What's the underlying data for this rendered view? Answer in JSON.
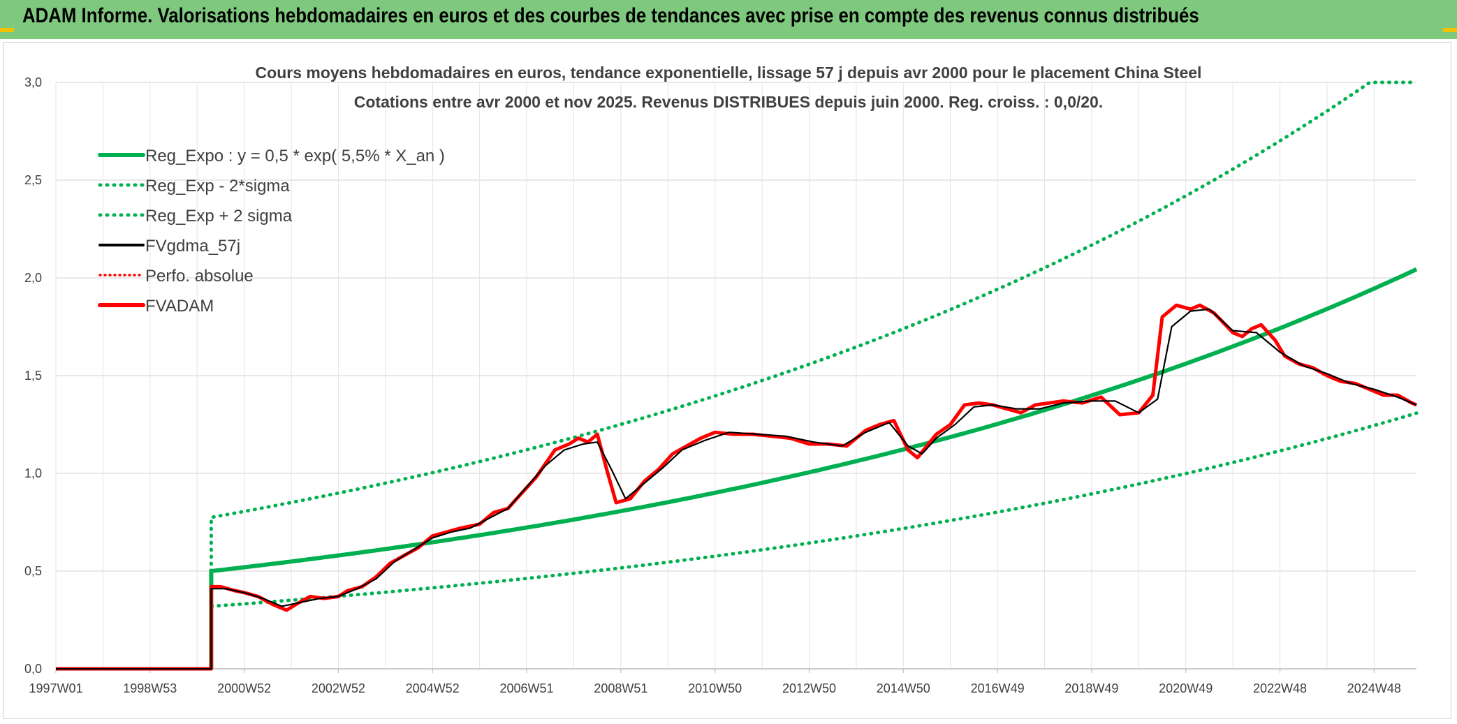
{
  "header": {
    "title": "ADAM Informe. Valorisations hebdomadaires en euros et des courbes de tendances avec prise en compte des revenus connus distribués"
  },
  "colors": {
    "header_bg": "#7fc97f",
    "green": "#00b050",
    "black": "#000000",
    "red": "#ff0000",
    "accent": "#f2c200"
  },
  "chart_data": {
    "type": "line",
    "title_line1": "Cours moyens hebdomadaires en euros, tendance exponentielle, lissage 57 j depuis avr 2000 pour le placement China Steel",
    "title_line2": "Cotations entre avr 2000 et nov 2025. Revenus DISTRIBUES depuis juin 2000. Reg. croiss. : 0,0/20.",
    "xlim": [
      1997.0,
      2025.9
    ],
    "ylim": [
      0,
      3.0
    ],
    "y_ticks": [
      {
        "v": 0.0,
        "label": "0,0"
      },
      {
        "v": 0.5,
        "label": "0,5"
      },
      {
        "v": 1.0,
        "label": "1,0"
      },
      {
        "v": 1.5,
        "label": "1,5"
      },
      {
        "v": 2.0,
        "label": "2,0"
      },
      {
        "v": 2.5,
        "label": "2,5"
      },
      {
        "v": 3.0,
        "label": "3,0"
      }
    ],
    "x_ticks": [
      {
        "v": 1997.0,
        "label": "1997W01"
      },
      {
        "v": 1999.0,
        "label": "1998W53"
      },
      {
        "v": 2001.0,
        "label": "2000W52"
      },
      {
        "v": 2003.0,
        "label": "2002W52"
      },
      {
        "v": 2005.0,
        "label": "2004W52"
      },
      {
        "v": 2007.0,
        "label": "2006W51"
      },
      {
        "v": 2009.0,
        "label": "2008W51"
      },
      {
        "v": 2011.0,
        "label": "2010W50"
      },
      {
        "v": 2013.0,
        "label": "2012W50"
      },
      {
        "v": 2015.0,
        "label": "2014W50"
      },
      {
        "v": 2017.0,
        "label": "2016W49"
      },
      {
        "v": 2019.0,
        "label": "2018W49"
      },
      {
        "v": 2021.0,
        "label": "2020W49"
      },
      {
        "v": 2023.0,
        "label": "2022W48"
      },
      {
        "v": 2025.0,
        "label": "2024W48"
      }
    ],
    "regression": {
      "start": 2000.3,
      "a": 0.5,
      "rate": 0.055,
      "upper_factor": 1.55,
      "lower_factor": 0.64
    },
    "series": [
      {
        "name": "FVADAM",
        "x": [
          1997.0,
          2000.3,
          2000.3,
          2000.5,
          2000.8,
          2001.0,
          2001.3,
          2001.6,
          2001.9,
          2002.1,
          2002.4,
          2002.7,
          2003.0,
          2003.2,
          2003.5,
          2003.8,
          2004.1,
          2004.4,
          2004.7,
          2005.0,
          2005.3,
          2005.6,
          2006.0,
          2006.3,
          2006.6,
          2006.9,
          2007.2,
          2007.4,
          2007.6,
          2007.9,
          2008.1,
          2008.3,
          2008.5,
          2008.7,
          2008.9,
          2009.2,
          2009.5,
          2009.8,
          2010.1,
          2010.4,
          2010.7,
          2011.0,
          2011.4,
          2011.8,
          2012.2,
          2012.6,
          2013.0,
          2013.4,
          2013.8,
          2014.2,
          2014.5,
          2014.8,
          2015.1,
          2015.3,
          2015.5,
          2015.7,
          2016.0,
          2016.3,
          2016.6,
          2016.9,
          2017.2,
          2017.5,
          2017.8,
          2018.1,
          2018.4,
          2018.8,
          2019.2,
          2019.6,
          2020.0,
          2020.3,
          2020.5,
          2020.8,
          2021.1,
          2021.3,
          2021.6,
          2022.0,
          2022.2,
          2022.4,
          2022.6,
          2022.9,
          2023.1,
          2023.4,
          2023.7,
          2024.0,
          2024.3,
          2024.6,
          2024.9,
          2025.2,
          2025.5,
          2025.8,
          2025.9
        ],
        "y": [
          0.0,
          0.0,
          0.42,
          0.42,
          0.4,
          0.39,
          0.37,
          0.33,
          0.3,
          0.33,
          0.37,
          0.36,
          0.37,
          0.4,
          0.42,
          0.47,
          0.54,
          0.58,
          0.62,
          0.68,
          0.7,
          0.72,
          0.74,
          0.8,
          0.82,
          0.9,
          0.98,
          1.05,
          1.12,
          1.15,
          1.18,
          1.16,
          1.2,
          1.02,
          0.85,
          0.87,
          0.96,
          1.02,
          1.1,
          1.14,
          1.18,
          1.21,
          1.2,
          1.2,
          1.19,
          1.18,
          1.15,
          1.15,
          1.14,
          1.22,
          1.25,
          1.27,
          1.12,
          1.08,
          1.14,
          1.2,
          1.25,
          1.35,
          1.36,
          1.35,
          1.33,
          1.31,
          1.35,
          1.36,
          1.37,
          1.36,
          1.39,
          1.3,
          1.31,
          1.4,
          1.8,
          1.86,
          1.84,
          1.86,
          1.82,
          1.72,
          1.7,
          1.74,
          1.76,
          1.68,
          1.6,
          1.56,
          1.54,
          1.5,
          1.47,
          1.46,
          1.43,
          1.4,
          1.4,
          1.36,
          1.35
        ]
      },
      {
        "name": "FVgdma_57j",
        "x": [
          1997.0,
          2000.3,
          2000.3,
          2000.6,
          2001.0,
          2001.4,
          2001.8,
          2002.2,
          2002.6,
          2003.0,
          2003.4,
          2003.8,
          2004.2,
          2004.6,
          2005.0,
          2005.4,
          2005.8,
          2006.2,
          2006.6,
          2007.0,
          2007.4,
          2007.8,
          2008.2,
          2008.5,
          2008.8,
          2009.1,
          2009.5,
          2009.9,
          2010.3,
          2010.8,
          2011.3,
          2011.9,
          2012.5,
          2013.1,
          2013.7,
          2014.2,
          2014.7,
          2015.1,
          2015.4,
          2015.7,
          2016.1,
          2016.5,
          2016.9,
          2017.4,
          2017.9,
          2018.4,
          2019.0,
          2019.5,
          2020.0,
          2020.4,
          2020.7,
          2021.1,
          2021.5,
          2022.0,
          2022.5,
          2023.0,
          2023.5,
          2024.0,
          2024.5,
          2025.0,
          2025.5,
          2025.9
        ],
        "y": [
          0.0,
          0.0,
          0.41,
          0.41,
          0.39,
          0.36,
          0.32,
          0.34,
          0.36,
          0.37,
          0.41,
          0.46,
          0.55,
          0.61,
          0.67,
          0.7,
          0.72,
          0.77,
          0.82,
          0.93,
          1.04,
          1.12,
          1.15,
          1.16,
          1.02,
          0.87,
          0.95,
          1.03,
          1.12,
          1.17,
          1.21,
          1.2,
          1.19,
          1.16,
          1.14,
          1.21,
          1.26,
          1.14,
          1.1,
          1.18,
          1.25,
          1.34,
          1.35,
          1.33,
          1.33,
          1.36,
          1.37,
          1.37,
          1.31,
          1.38,
          1.75,
          1.83,
          1.84,
          1.73,
          1.72,
          1.62,
          1.55,
          1.51,
          1.46,
          1.43,
          1.39,
          1.35
        ]
      },
      {
        "name": "Reg_Expo : y = 0,5 * exp( 5,5% *  X_an )"
      },
      {
        "name": "Reg_Exp - 2*sigma"
      },
      {
        "name": "Reg_Exp + 2 sigma"
      },
      {
        "name": "Perfo. absolue"
      }
    ],
    "legend": [
      {
        "label": "Reg_Expo : y = 0,5 * exp( 5,5% *  X_an )",
        "style": "solid-green"
      },
      {
        "label": "Reg_Exp - 2*sigma",
        "style": "dotted-green"
      },
      {
        "label": "Reg_Exp + 2 sigma",
        "style": "dotted-green"
      },
      {
        "label": "FVgdma_57j",
        "style": "solid-black"
      },
      {
        "label": "Perfo. absolue",
        "style": "dotted-red"
      },
      {
        "label": "FVADAM",
        "style": "solid-red"
      }
    ],
    "legend_position": "top-left",
    "grid": true
  }
}
